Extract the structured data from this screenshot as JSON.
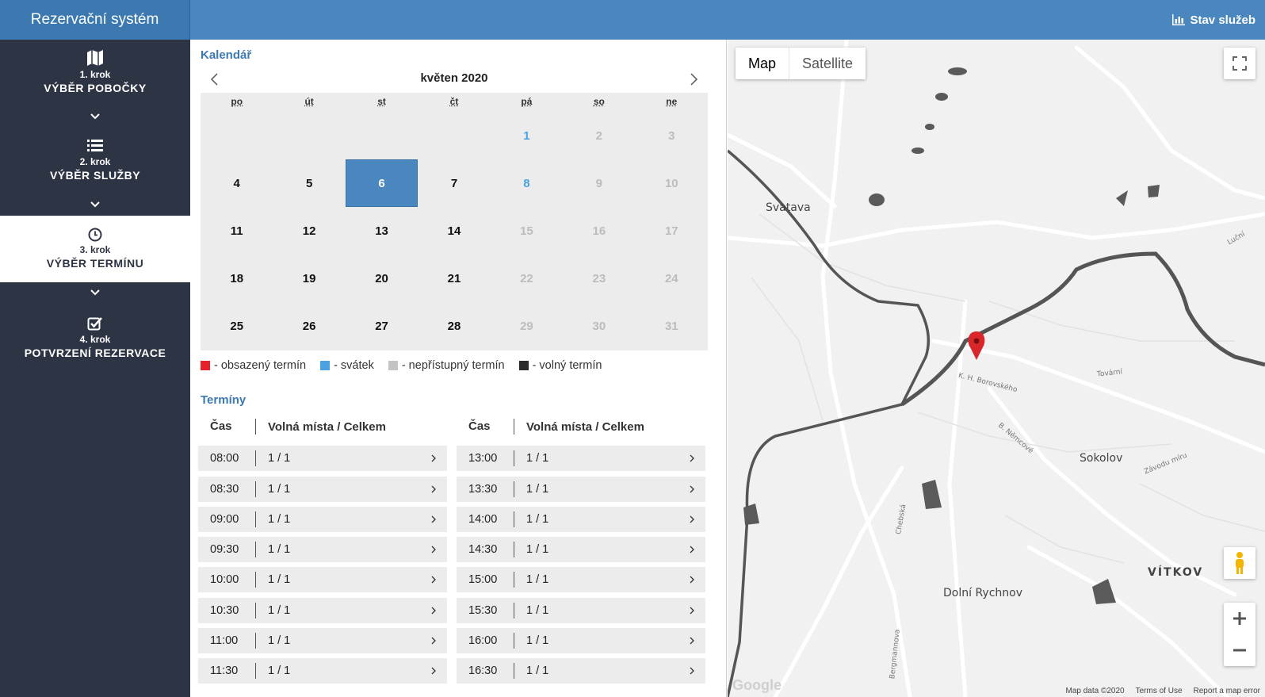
{
  "header": {
    "brand": "Rezervační systém",
    "status_link": "Stav služeb"
  },
  "sidebar": {
    "steps": [
      {
        "num": "1. krok",
        "title": "VÝBĚR POBOČKY",
        "icon": "map-icon"
      },
      {
        "num": "2. krok",
        "title": "VÝBĚR SLUŽBY",
        "icon": "list-icon"
      },
      {
        "num": "3. krok",
        "title": "VÝBĚR TERMÍNU",
        "icon": "clock-icon"
      },
      {
        "num": "4. krok",
        "title": "POTVRZENÍ REZERVACE",
        "icon": "checkbox-icon"
      }
    ],
    "active_step": 3
  },
  "calendar": {
    "section_title": "Kalendář",
    "month": "květen 2020",
    "weekdays": [
      "po",
      "út",
      "st",
      "čt",
      "pá",
      "so",
      "ne"
    ],
    "days": [
      {
        "label": "",
        "state": "empty"
      },
      {
        "label": "",
        "state": "empty"
      },
      {
        "label": "",
        "state": "empty"
      },
      {
        "label": "",
        "state": "empty"
      },
      {
        "label": "1",
        "state": "holiday"
      },
      {
        "label": "2",
        "state": "disabled"
      },
      {
        "label": "3",
        "state": "disabled"
      },
      {
        "label": "4",
        "state": "free"
      },
      {
        "label": "5",
        "state": "free"
      },
      {
        "label": "6",
        "state": "selected"
      },
      {
        "label": "7",
        "state": "free"
      },
      {
        "label": "8",
        "state": "holiday"
      },
      {
        "label": "9",
        "state": "disabled"
      },
      {
        "label": "10",
        "state": "disabled"
      },
      {
        "label": "11",
        "state": "free"
      },
      {
        "label": "12",
        "state": "free"
      },
      {
        "label": "13",
        "state": "free"
      },
      {
        "label": "14",
        "state": "free"
      },
      {
        "label": "15",
        "state": "disabled"
      },
      {
        "label": "16",
        "state": "disabled"
      },
      {
        "label": "17",
        "state": "disabled"
      },
      {
        "label": "18",
        "state": "free"
      },
      {
        "label": "19",
        "state": "free"
      },
      {
        "label": "20",
        "state": "free"
      },
      {
        "label": "21",
        "state": "free"
      },
      {
        "label": "22",
        "state": "disabled"
      },
      {
        "label": "23",
        "state": "disabled"
      },
      {
        "label": "24",
        "state": "disabled"
      },
      {
        "label": "25",
        "state": "free"
      },
      {
        "label": "26",
        "state": "free"
      },
      {
        "label": "27",
        "state": "free"
      },
      {
        "label": "28",
        "state": "free"
      },
      {
        "label": "29",
        "state": "disabled"
      },
      {
        "label": "30",
        "state": "disabled"
      },
      {
        "label": "31",
        "state": "disabled"
      }
    ],
    "legend": [
      {
        "label": "- obsazený termín",
        "color": "#e8202a"
      },
      {
        "label": "- svátek",
        "color": "#4aa3e0"
      },
      {
        "label": "- nepřístupný termín",
        "color": "#c4c4c4"
      },
      {
        "label": "- volný termín",
        "color": "#2b2b2b"
      }
    ]
  },
  "slots": {
    "section_title": "Termíny",
    "col_time": "Čas",
    "col_capacity": "Volná místa / Celkem",
    "left": [
      {
        "time": "08:00",
        "capacity": "1 / 1"
      },
      {
        "time": "08:30",
        "capacity": "1 / 1"
      },
      {
        "time": "09:00",
        "capacity": "1 / 1"
      },
      {
        "time": "09:30",
        "capacity": "1 / 1"
      },
      {
        "time": "10:00",
        "capacity": "1 / 1"
      },
      {
        "time": "10:30",
        "capacity": "1 / 1"
      },
      {
        "time": "11:00",
        "capacity": "1 / 1"
      },
      {
        "time": "11:30",
        "capacity": "1 / 1"
      }
    ],
    "right": [
      {
        "time": "13:00",
        "capacity": "1 / 1"
      },
      {
        "time": "13:30",
        "capacity": "1 / 1"
      },
      {
        "time": "14:00",
        "capacity": "1 / 1"
      },
      {
        "time": "14:30",
        "capacity": "1 / 1"
      },
      {
        "time": "15:00",
        "capacity": "1 / 1"
      },
      {
        "time": "15:30",
        "capacity": "1 / 1"
      },
      {
        "time": "16:00",
        "capacity": "1 / 1"
      },
      {
        "time": "16:30",
        "capacity": "1 / 1"
      }
    ]
  },
  "map": {
    "type_map": "Map",
    "type_satellite": "Satellite",
    "labels": [
      "Svatava",
      "Sokolov",
      "VÍTKOV",
      "Dolní Rychnov"
    ],
    "streets": [
      "K. H. Borovského",
      "B. Němcové",
      "Tovární",
      "Závodu míru",
      "Chebská",
      "Bergmannova",
      "Luční"
    ],
    "footer": [
      "Map data ©2020",
      "Terms of Use",
      "Report a map error"
    ],
    "google": "Google",
    "marker_color": "#d9262b"
  }
}
